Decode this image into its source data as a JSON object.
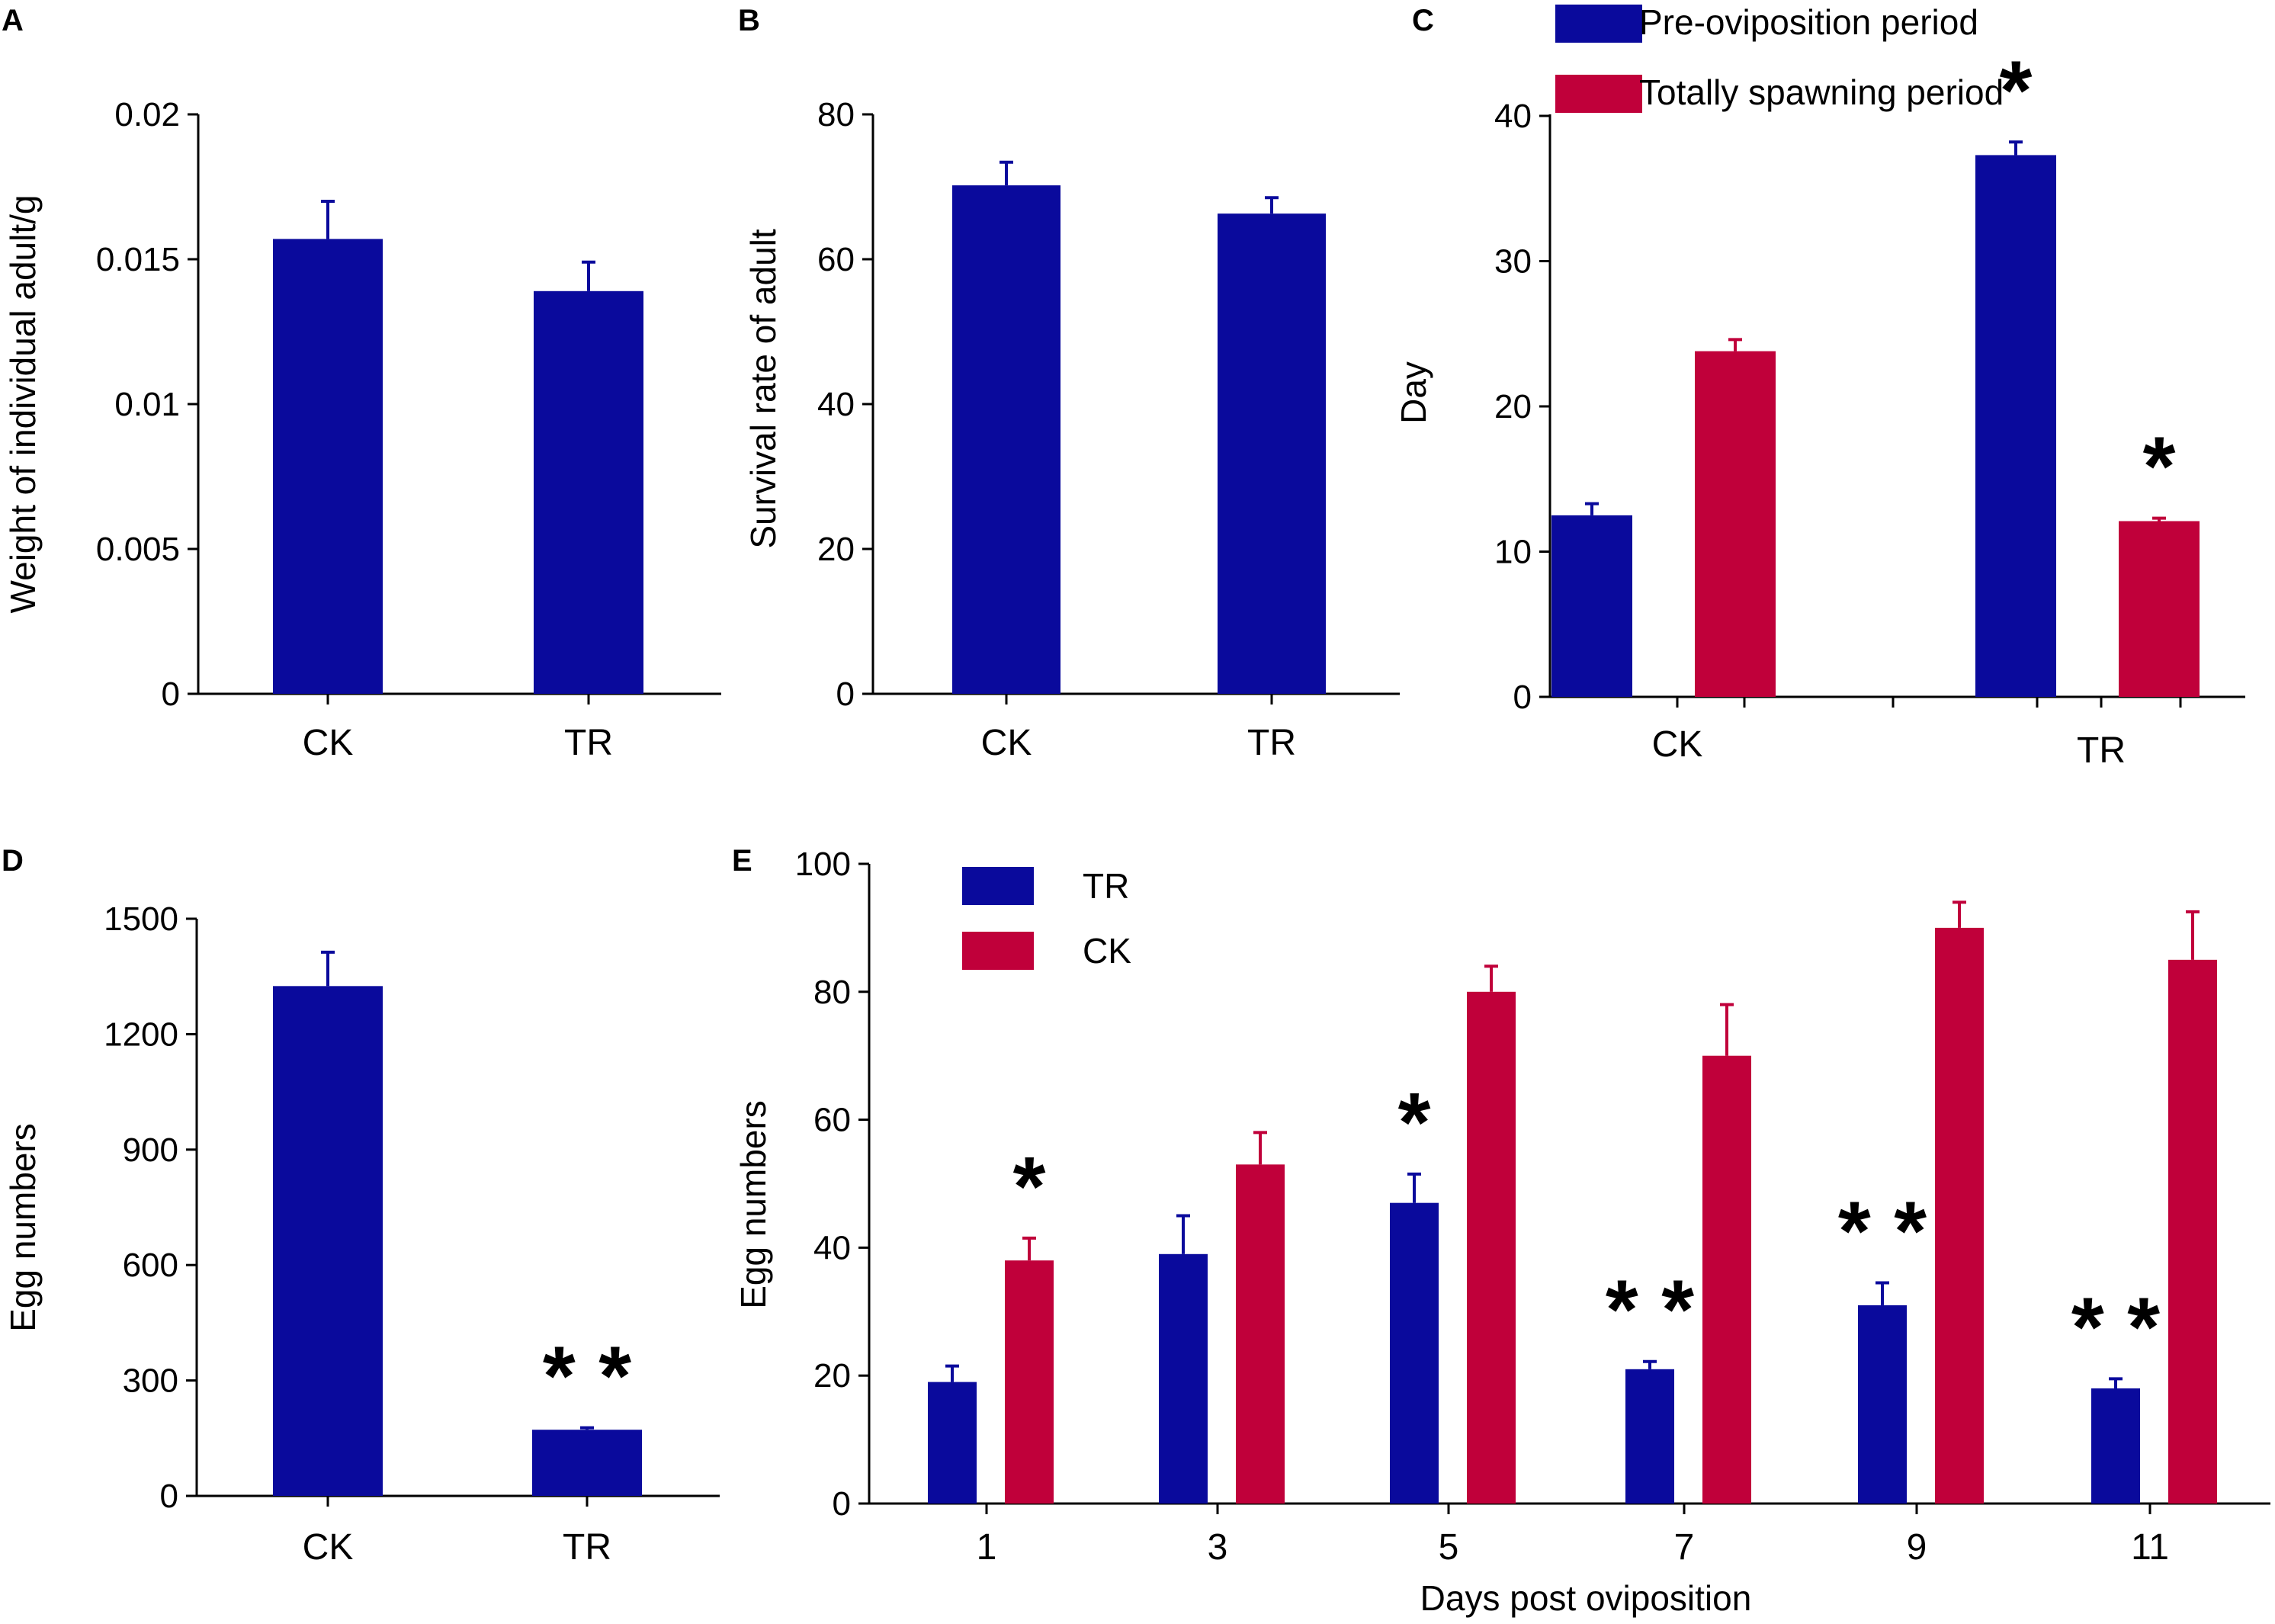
{
  "chart_data": [
    {
      "panel": "A",
      "type": "bar",
      "categories": [
        "CK",
        "TR"
      ],
      "values": [
        0.0157,
        0.0139
      ],
      "errors": [
        0.0013,
        0.001
      ],
      "ylabel": "Weight of individual adult/g",
      "xlabel": "",
      "ylim": [
        0,
        0.02
      ],
      "yticks": [
        0,
        0.005,
        0.01,
        0.015,
        0.02
      ],
      "ytick_labels": [
        "0",
        "0.005",
        "0.01",
        "0.015",
        "0.02"
      ],
      "colors": [
        "#0a0a9c"
      ],
      "significance": [
        "",
        ""
      ]
    },
    {
      "panel": "B",
      "type": "bar",
      "categories": [
        "CK",
        "TR"
      ],
      "values": [
        70.2,
        66.3
      ],
      "errors": [
        3.2,
        2.2
      ],
      "ylabel": "Survival rate of adult",
      "xlabel": "",
      "ylim": [
        0,
        80
      ],
      "yticks": [
        0,
        20,
        40,
        60,
        80
      ],
      "ytick_labels": [
        "0",
        "20",
        "40",
        "60",
        "80"
      ],
      "colors": [
        "#0a0a9c"
      ],
      "significance": [
        "",
        ""
      ]
    },
    {
      "panel": "C",
      "type": "bar",
      "categories": [
        "CK",
        "TR"
      ],
      "series": [
        {
          "name": "Pre-oviposition period",
          "values": [
            12.5,
            37.3
          ],
          "errors": [
            0.8,
            0.9
          ],
          "significance": [
            "",
            "*"
          ]
        },
        {
          "name": "Totally spawning period",
          "values": [
            23.8,
            12.1
          ],
          "errors": [
            0.8,
            0.2
          ],
          "significance": [
            "",
            "*"
          ]
        }
      ],
      "ylabel": "Day",
      "xlabel": "",
      "ylim": [
        0,
        40
      ],
      "yticks": [
        0,
        10,
        20,
        30,
        40
      ],
      "ytick_labels": [
        "0",
        "10",
        "20",
        "30",
        "40"
      ],
      "colors": [
        "#0a0a9c",
        "#c0003a"
      ],
      "legend_position": "top"
    },
    {
      "panel": "D",
      "type": "bar",
      "categories": [
        "CK",
        "TR"
      ],
      "values": [
        1325,
        172
      ],
      "errors": [
        88,
        5
      ],
      "ylabel": "Egg numbers",
      "xlabel": "",
      "ylim": [
        0,
        1500
      ],
      "yticks": [
        0,
        300,
        600,
        900,
        1200,
        1500
      ],
      "ytick_labels": [
        "0",
        "300",
        "600",
        "900",
        "1200",
        "1500"
      ],
      "colors": [
        "#0a0a9c"
      ],
      "significance": [
        "",
        "**"
      ]
    },
    {
      "panel": "E",
      "type": "bar",
      "categories": [
        "1",
        "3",
        "5",
        "7",
        "9",
        "11"
      ],
      "series": [
        {
          "name": "TR",
          "values": [
            19,
            39,
            47,
            21,
            31,
            18
          ],
          "errors": [
            2.5,
            6,
            4.5,
            1.2,
            3.5,
            1.5
          ],
          "significance": [
            "",
            "",
            "*",
            "**",
            "**",
            "**"
          ]
        },
        {
          "name": "CK",
          "values": [
            38,
            53,
            80,
            70,
            90,
            85
          ],
          "errors": [
            3.5,
            5,
            4,
            8,
            4,
            7.5
          ],
          "significance": [
            "*",
            "",
            "",
            "",
            "",
            ""
          ]
        }
      ],
      "ylabel": "Egg numbers",
      "xlabel": "Days post oviposition",
      "ylim": [
        0,
        100
      ],
      "yticks": [
        0,
        20,
        40,
        60,
        80,
        100
      ],
      "ytick_labels": [
        "0",
        "20",
        "40",
        "60",
        "80",
        "100"
      ],
      "colors": [
        "#0a0a9c",
        "#c0003a"
      ],
      "legend_position": "top-left"
    }
  ]
}
